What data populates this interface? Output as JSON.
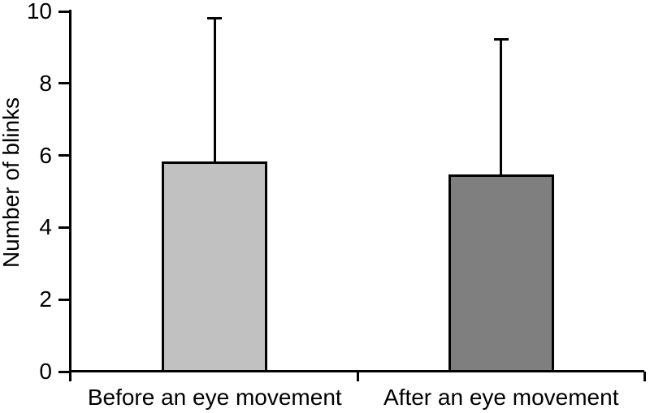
{
  "figure": {
    "background": "#ffffff"
  },
  "chart_data": {
    "type": "bar",
    "title": "",
    "ylabel": "Number of blinks",
    "xlabel": "",
    "categories": [
      "Before an eye movement",
      "After an eye movement"
    ],
    "values": [
      5.83,
      5.47
    ],
    "errors_upper": [
      3.95,
      3.73
    ],
    "error_bar_tops": [
      9.78,
      9.2
    ],
    "ylim": [
      0,
      10
    ],
    "yticks": [
      0,
      2,
      4,
      6,
      8,
      10
    ],
    "bar_colors": [
      "#c1c1c1",
      "#7f7f7f"
    ],
    "bar_border_color": "#000000",
    "axis_color": "#000000",
    "text_color": "#000000",
    "grid": false,
    "legend_position": "none",
    "error_bars": "upper-only"
  }
}
